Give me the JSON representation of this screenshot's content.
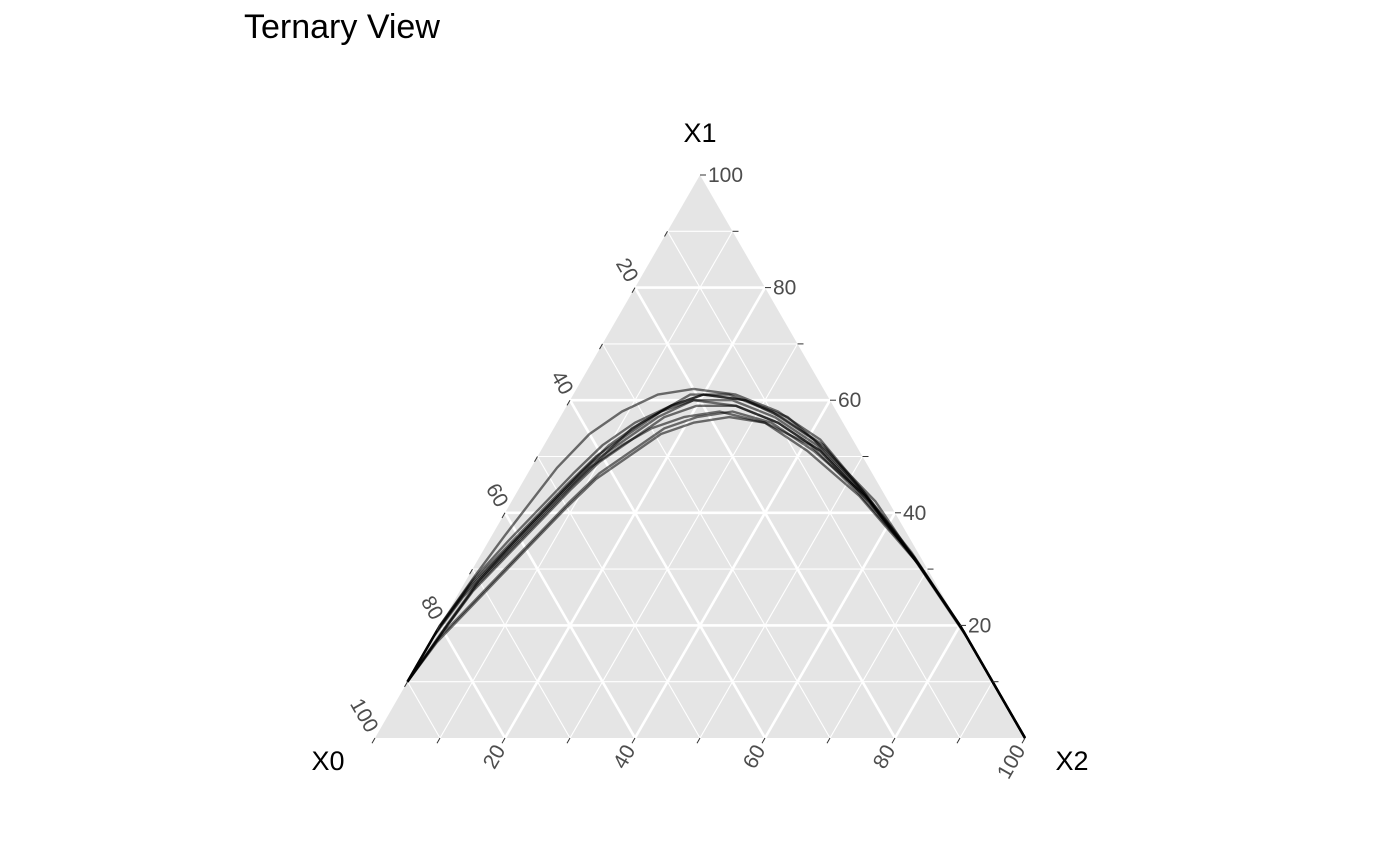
{
  "title": "Ternary View",
  "chart_data": {
    "type": "ternary-line",
    "title": "Ternary View",
    "axes": {
      "top": "X1",
      "left": "X0",
      "right": "X2"
    },
    "ticks": {
      "x1": [
        20,
        40,
        60,
        80,
        100
      ],
      "x0": [
        20,
        40,
        60,
        80,
        100
      ],
      "x2": [
        20,
        40,
        60,
        80,
        100
      ]
    },
    "grid": true,
    "colors": {
      "panel": "#e5e5e5",
      "grid": "#ffffff",
      "line": "#000000",
      "tick_text": "#4d4d4d"
    },
    "series_values": [
      {
        "points": [
          [
            90,
            10,
            0
          ],
          [
            80,
            20,
            0
          ],
          [
            70,
            29,
            1
          ],
          [
            62,
            36,
            2
          ],
          [
            55,
            42,
            3
          ],
          [
            48,
            48,
            4
          ],
          [
            40,
            54,
            6
          ],
          [
            33,
            58,
            9
          ],
          [
            26,
            61,
            13
          ],
          [
            20,
            62,
            18
          ],
          [
            14,
            61,
            25
          ],
          [
            9,
            58,
            33
          ],
          [
            5,
            53,
            42
          ],
          [
            3,
            44,
            53
          ],
          [
            1,
            33,
            66
          ],
          [
            0,
            20,
            80
          ],
          [
            0,
            10,
            90
          ],
          [
            0,
            0,
            100
          ]
        ]
      },
      {
        "points": [
          [
            90,
            10,
            0
          ],
          [
            81,
            19,
            0
          ],
          [
            73,
            26,
            1
          ],
          [
            65,
            32,
            3
          ],
          [
            57,
            38,
            5
          ],
          [
            49,
            44,
            7
          ],
          [
            42,
            49,
            9
          ],
          [
            35,
            53,
            12
          ],
          [
            28,
            57,
            15
          ],
          [
            21,
            60,
            19
          ],
          [
            15,
            60,
            25
          ],
          [
            10,
            57,
            33
          ],
          [
            6,
            52,
            42
          ],
          [
            3,
            43,
            54
          ],
          [
            1,
            31,
            68
          ],
          [
            0,
            19,
            81
          ],
          [
            0,
            9,
            91
          ],
          [
            0,
            0,
            100
          ]
        ]
      },
      {
        "points": [
          [
            90,
            10,
            0
          ],
          [
            79,
            20,
            1
          ],
          [
            70,
            28,
            2
          ],
          [
            61,
            35,
            4
          ],
          [
            53,
            41,
            6
          ],
          [
            45,
            47,
            8
          ],
          [
            38,
            52,
            10
          ],
          [
            31,
            56,
            13
          ],
          [
            25,
            59,
            16
          ],
          [
            19,
            61,
            20
          ],
          [
            13,
            60,
            27
          ],
          [
            8,
            57,
            35
          ],
          [
            5,
            51,
            44
          ],
          [
            2,
            42,
            56
          ],
          [
            1,
            30,
            69
          ],
          [
            0,
            18,
            82
          ],
          [
            0,
            8,
            92
          ],
          [
            0,
            0,
            100
          ]
        ]
      },
      {
        "points": [
          [
            90,
            10,
            0
          ],
          [
            82,
            17,
            1
          ],
          [
            74,
            23,
            3
          ],
          [
            66,
            29,
            5
          ],
          [
            58,
            35,
            7
          ],
          [
            50,
            41,
            9
          ],
          [
            43,
            46,
            11
          ],
          [
            36,
            50,
            14
          ],
          [
            29,
            54,
            17
          ],
          [
            23,
            56,
            21
          ],
          [
            17,
            57,
            26
          ],
          [
            12,
            56,
            32
          ],
          [
            7,
            52,
            41
          ],
          [
            4,
            44,
            52
          ],
          [
            1,
            32,
            67
          ],
          [
            0,
            20,
            80
          ],
          [
            0,
            9,
            91
          ],
          [
            0,
            0,
            100
          ]
        ]
      },
      {
        "points": [
          [
            90,
            10,
            0
          ],
          [
            80,
            19,
            1
          ],
          [
            71,
            27,
            2
          ],
          [
            63,
            33,
            4
          ],
          [
            55,
            39,
            6
          ],
          [
            47,
            45,
            8
          ],
          [
            40,
            50,
            10
          ],
          [
            33,
            55,
            12
          ],
          [
            27,
            58,
            15
          ],
          [
            21,
            60,
            19
          ],
          [
            15,
            59,
            26
          ],
          [
            10,
            56,
            34
          ],
          [
            6,
            51,
            43
          ],
          [
            3,
            42,
            55
          ],
          [
            1,
            31,
            68
          ],
          [
            0,
            19,
            81
          ],
          [
            0,
            9,
            91
          ],
          [
            0,
            0,
            100
          ]
        ]
      },
      {
        "points": [
          [
            90,
            10,
            0
          ],
          [
            81,
            18,
            1
          ],
          [
            73,
            24,
            3
          ],
          [
            65,
            30,
            5
          ],
          [
            57,
            36,
            7
          ],
          [
            49,
            42,
            9
          ],
          [
            42,
            47,
            11
          ],
          [
            35,
            51,
            14
          ],
          [
            28,
            55,
            17
          ],
          [
            22,
            57,
            21
          ],
          [
            16,
            58,
            26
          ],
          [
            11,
            56,
            33
          ],
          [
            7,
            51,
            42
          ],
          [
            3,
            43,
            54
          ],
          [
            1,
            31,
            68
          ],
          [
            0,
            19,
            81
          ],
          [
            0,
            9,
            91
          ],
          [
            0,
            0,
            100
          ]
        ]
      },
      {
        "points": [
          [
            90,
            10,
            0
          ],
          [
            80,
            20,
            0
          ],
          [
            71,
            28,
            1
          ],
          [
            62,
            35,
            3
          ],
          [
            54,
            41,
            5
          ],
          [
            46,
            47,
            7
          ],
          [
            39,
            52,
            9
          ],
          [
            32,
            56,
            12
          ],
          [
            25,
            59,
            16
          ],
          [
            19,
            61,
            20
          ],
          [
            13,
            60,
            27
          ],
          [
            9,
            57,
            34
          ],
          [
            5,
            52,
            43
          ],
          [
            3,
            43,
            54
          ],
          [
            1,
            32,
            67
          ],
          [
            0,
            19,
            81
          ],
          [
            0,
            9,
            91
          ],
          [
            0,
            0,
            100
          ]
        ]
      },
      {
        "points": [
          [
            90,
            10,
            0
          ],
          [
            82,
            18,
            0
          ],
          [
            74,
            25,
            1
          ],
          [
            66,
            31,
            3
          ],
          [
            58,
            37,
            5
          ],
          [
            50,
            43,
            7
          ],
          [
            43,
            48,
            9
          ],
          [
            36,
            52,
            12
          ],
          [
            30,
            55,
            15
          ],
          [
            24,
            57,
            19
          ],
          [
            18,
            58,
            24
          ],
          [
            12,
            56,
            32
          ],
          [
            8,
            51,
            41
          ],
          [
            4,
            43,
            53
          ],
          [
            1,
            31,
            68
          ],
          [
            0,
            20,
            80
          ],
          [
            0,
            9,
            91
          ],
          [
            0,
            0,
            100
          ]
        ]
      },
      {
        "points": [
          [
            90,
            10,
            0
          ],
          [
            80,
            19,
            1
          ],
          [
            72,
            26,
            2
          ],
          [
            64,
            32,
            4
          ],
          [
            56,
            38,
            6
          ],
          [
            48,
            44,
            8
          ],
          [
            41,
            49,
            10
          ],
          [
            34,
            53,
            13
          ],
          [
            27,
            57,
            16
          ],
          [
            21,
            59,
            20
          ],
          [
            15,
            59,
            26
          ],
          [
            10,
            56,
            34
          ],
          [
            6,
            51,
            43
          ],
          [
            3,
            42,
            55
          ],
          [
            1,
            31,
            68
          ],
          [
            0,
            19,
            81
          ],
          [
            0,
            9,
            91
          ],
          [
            0,
            0,
            100
          ]
        ]
      },
      {
        "points": [
          [
            90,
            10,
            0
          ],
          [
            81,
            19,
            0
          ],
          [
            72,
            27,
            1
          ],
          [
            64,
            33,
            3
          ],
          [
            56,
            39,
            5
          ],
          [
            48,
            45,
            7
          ],
          [
            41,
            50,
            9
          ],
          [
            34,
            54,
            12
          ],
          [
            27,
            58,
            15
          ],
          [
            21,
            61,
            18
          ],
          [
            15,
            61,
            24
          ],
          [
            10,
            58,
            32
          ],
          [
            6,
            53,
            41
          ],
          [
            3,
            44,
            53
          ],
          [
            1,
            32,
            67
          ],
          [
            0,
            20,
            80
          ],
          [
            0,
            10,
            90
          ],
          [
            0,
            0,
            100
          ]
        ]
      }
    ]
  }
}
